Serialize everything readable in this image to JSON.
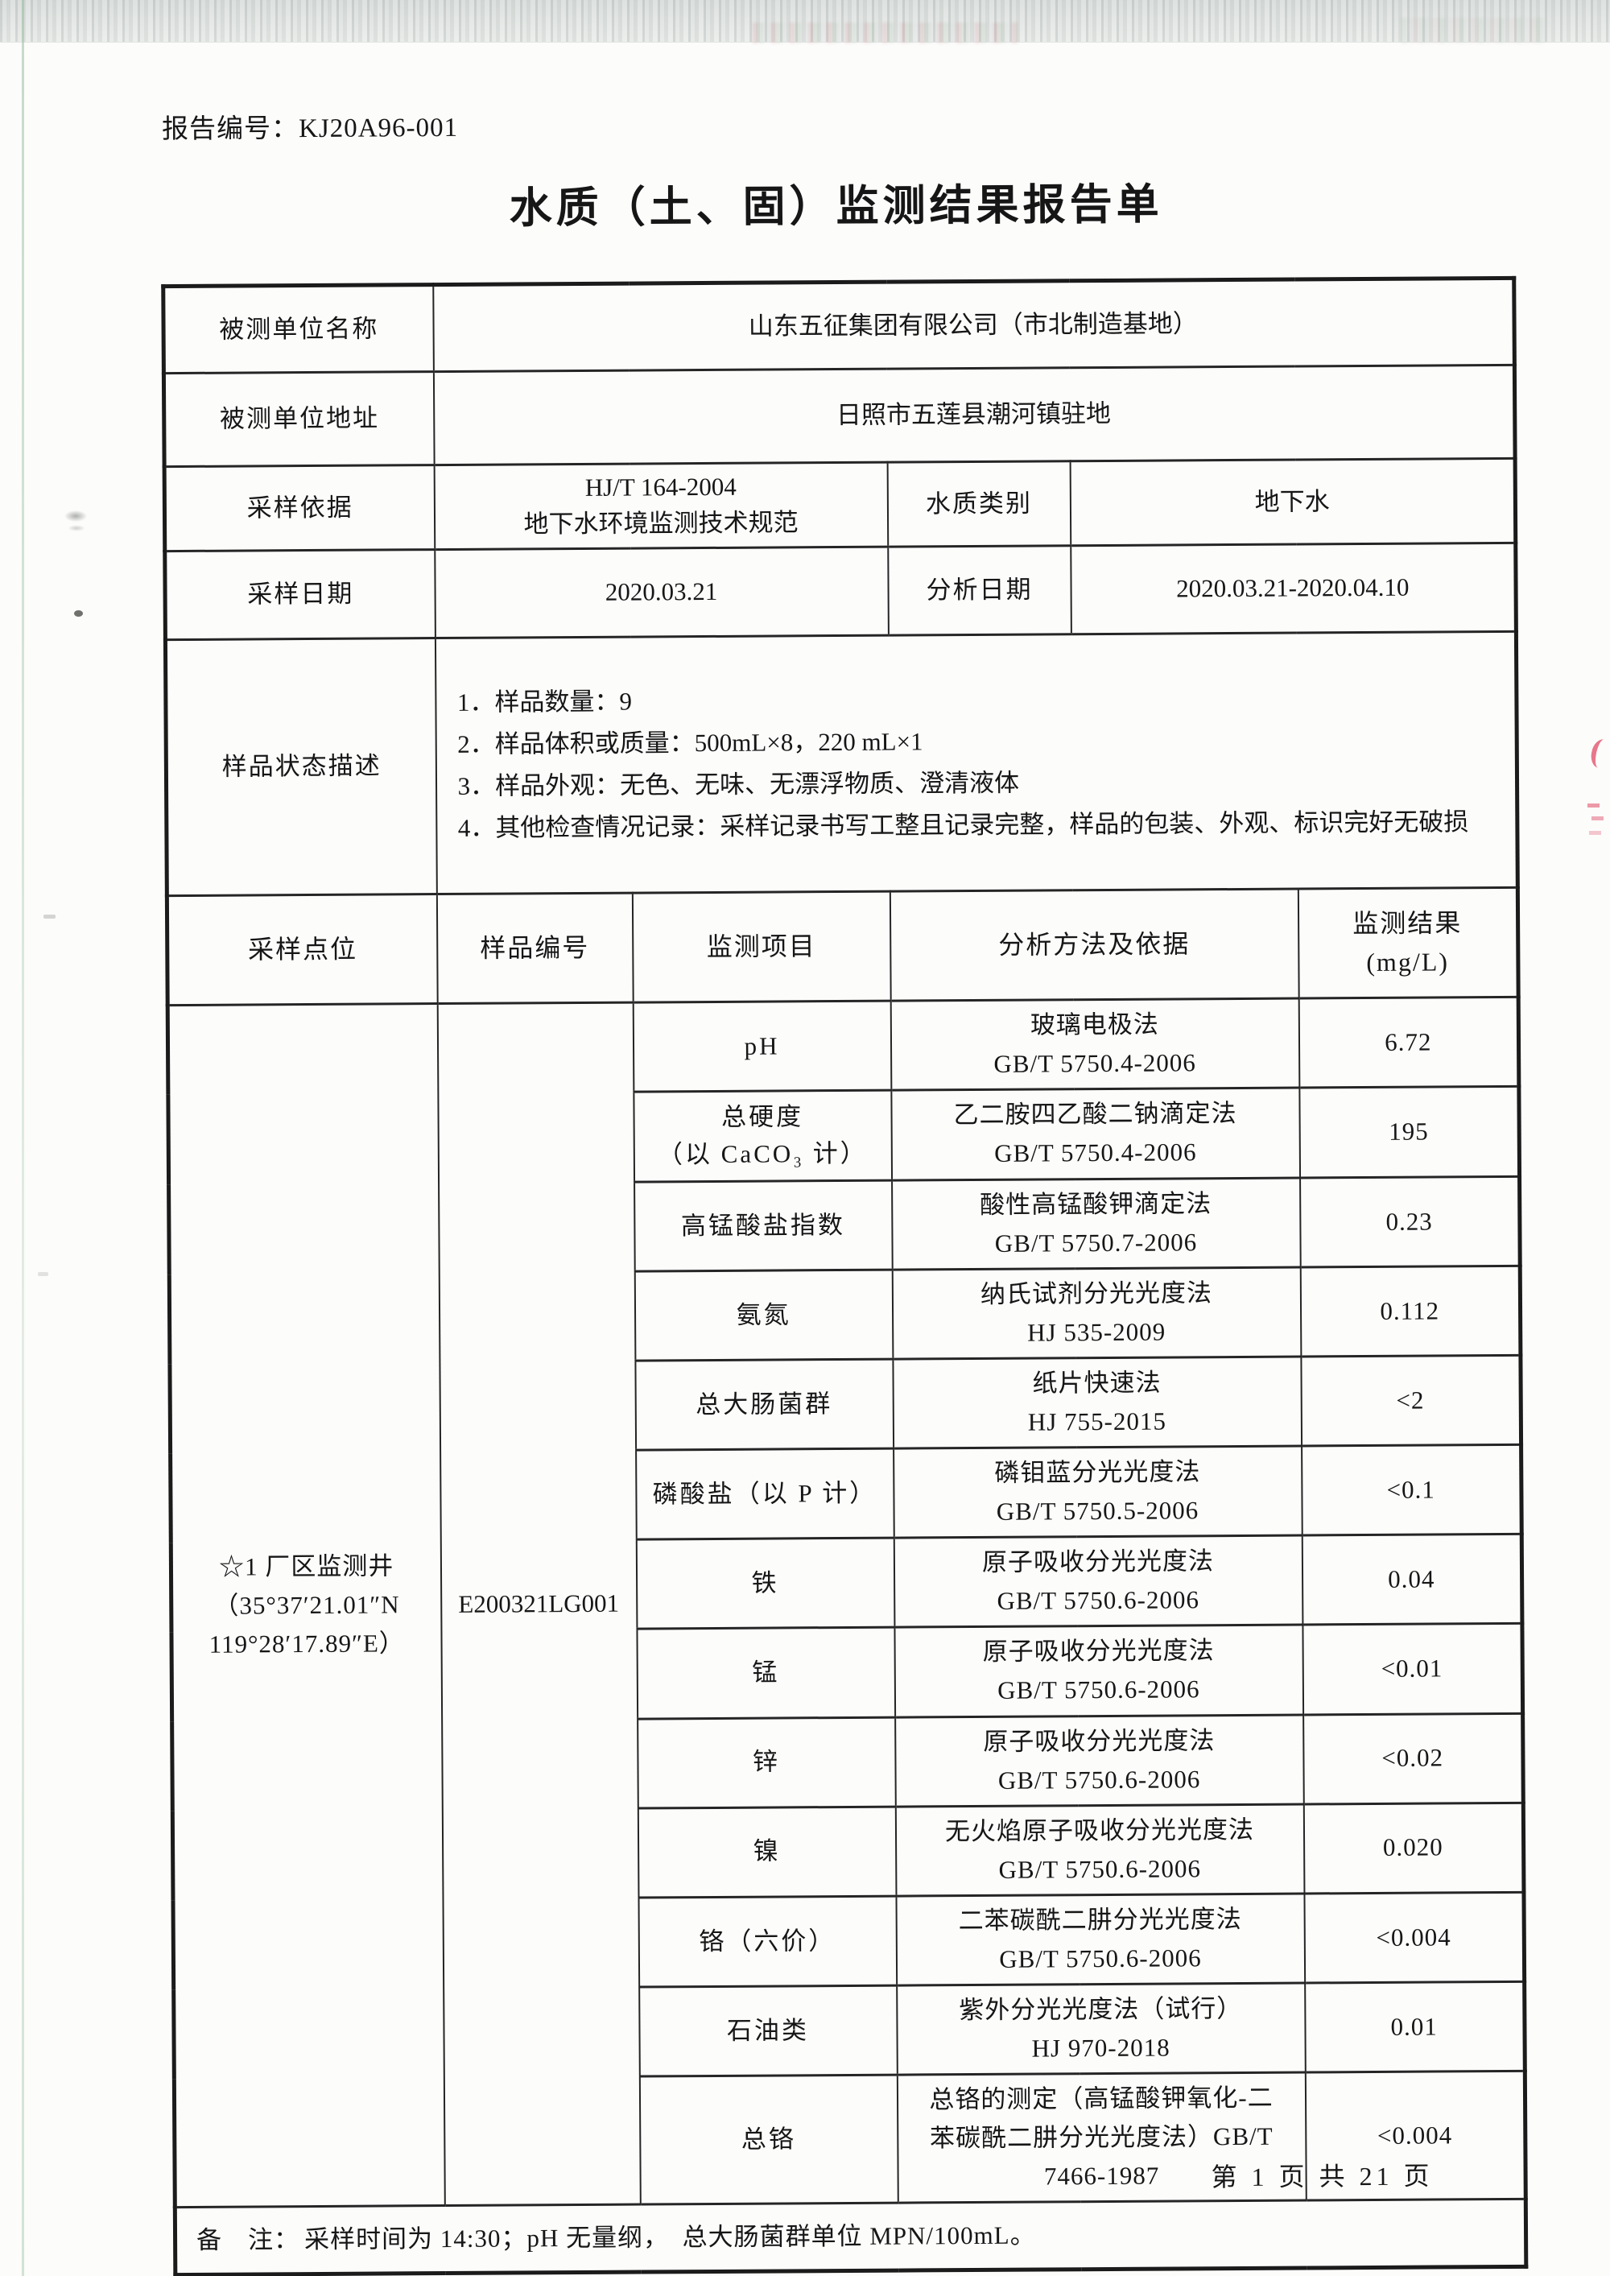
{
  "header": {
    "report_no_label": "报告编号：",
    "report_no": "KJ20A96-001",
    "title": "水质（土、固）监测结果报告单"
  },
  "info": {
    "unit_name": {
      "label": "被测单位名称",
      "value": "山东五征集团有限公司（市北制造基地）"
    },
    "unit_address": {
      "label": "被测单位地址",
      "value": "日照市五莲县潮河镇驻地"
    },
    "sampling_basis": {
      "label": "采样依据",
      "value_lines": [
        "HJ/T 164-2004",
        "地下水环境监测技术规范"
      ]
    },
    "water_type": {
      "label": "水质类别",
      "value": "地下水"
    },
    "sampling_date": {
      "label": "采样日期",
      "value": "2020.03.21"
    },
    "analysis_date": {
      "label": "分析日期",
      "value": "2020.03.21-2020.04.10"
    },
    "sample_state": {
      "label": "样品状态描述",
      "lines": [
        "1．样品数量：9",
        "2．样品体积或质量：500mL×8，220 mL×1",
        "3．样品外观：无色、无味、无漂浮物质、澄清液体",
        "4．其他检查情况记录：采样记录书写工整且记录完整，样品的包装、外观、标识完好无破损"
      ]
    }
  },
  "monitoring": {
    "headers": {
      "point": "采样点位",
      "sample_no": "样品编号",
      "item": "监测项目",
      "method": "分析方法及依据",
      "result_line1": "监测结果",
      "result_unit": "(mg/L)"
    },
    "point_lines": [
      "☆1 厂区监测井",
      "（35°37′21.01″N",
      "119°28′17.89″E）"
    ],
    "sample_no": "E200321LG001",
    "rows": [
      {
        "item_lines": [
          "pH"
        ],
        "method_lines": [
          "玻璃电极法",
          "GB/T 5750.4-2006"
        ],
        "result": "6.72"
      },
      {
        "item_lines": [
          "总硬度",
          "（以 CaCO₃ 计）"
        ],
        "method_lines": [
          "乙二胺四乙酸二钠滴定法",
          "GB/T 5750.4-2006"
        ],
        "result": "195"
      },
      {
        "item_lines": [
          "高锰酸盐指数"
        ],
        "method_lines": [
          "酸性高锰酸钾滴定法",
          "GB/T 5750.7-2006"
        ],
        "result": "0.23"
      },
      {
        "item_lines": [
          "氨氮"
        ],
        "method_lines": [
          "纳氏试剂分光光度法",
          "HJ 535-2009"
        ],
        "result": "0.112"
      },
      {
        "item_lines": [
          "总大肠菌群"
        ],
        "method_lines": [
          "纸片快速法",
          "HJ 755-2015"
        ],
        "result": "<2"
      },
      {
        "item_lines": [
          "磷酸盐（以 P 计）"
        ],
        "method_lines": [
          "磷钼蓝分光光度法",
          "GB/T 5750.5-2006"
        ],
        "result": "<0.1"
      },
      {
        "item_lines": [
          "铁"
        ],
        "method_lines": [
          "原子吸收分光光度法",
          "GB/T 5750.6-2006"
        ],
        "result": "0.04"
      },
      {
        "item_lines": [
          "锰"
        ],
        "method_lines": [
          "原子吸收分光光度法",
          "GB/T 5750.6-2006"
        ],
        "result": "<0.01"
      },
      {
        "item_lines": [
          "锌"
        ],
        "method_lines": [
          "原子吸收分光光度法",
          "GB/T 5750.6-2006"
        ],
        "result": "<0.02"
      },
      {
        "item_lines": [
          "镍"
        ],
        "method_lines": [
          "无火焰原子吸收分光光度法",
          "GB/T 5750.6-2006"
        ],
        "result": "0.020"
      },
      {
        "item_lines": [
          "铬（六价）"
        ],
        "method_lines": [
          "二苯碳酰二肼分光光度法",
          "GB/T 5750.6-2006"
        ],
        "result": "<0.004"
      },
      {
        "item_lines": [
          "石油类"
        ],
        "method_lines": [
          "紫外分光光度法（试行）",
          "HJ 970-2018"
        ],
        "result": "0.01"
      },
      {
        "item_lines": [
          "总铬"
        ],
        "method_lines": [
          "总铬的测定（高锰酸钾氧化-二",
          "苯碳酰二肼分光光度法）GB/T",
          "7466-1987"
        ],
        "result": "<0.004"
      }
    ]
  },
  "note": {
    "label": "备　注：",
    "text": "采样时间为 14:30；pH 无量纲，　总大肠菌群单位 MPN/100mL。"
  },
  "footer": {
    "page_indicator": "第 1 页 共 21 页"
  },
  "colors": {
    "ink": "#161616",
    "table_border": "#252525",
    "artifact_red": "#de3e5c"
  }
}
